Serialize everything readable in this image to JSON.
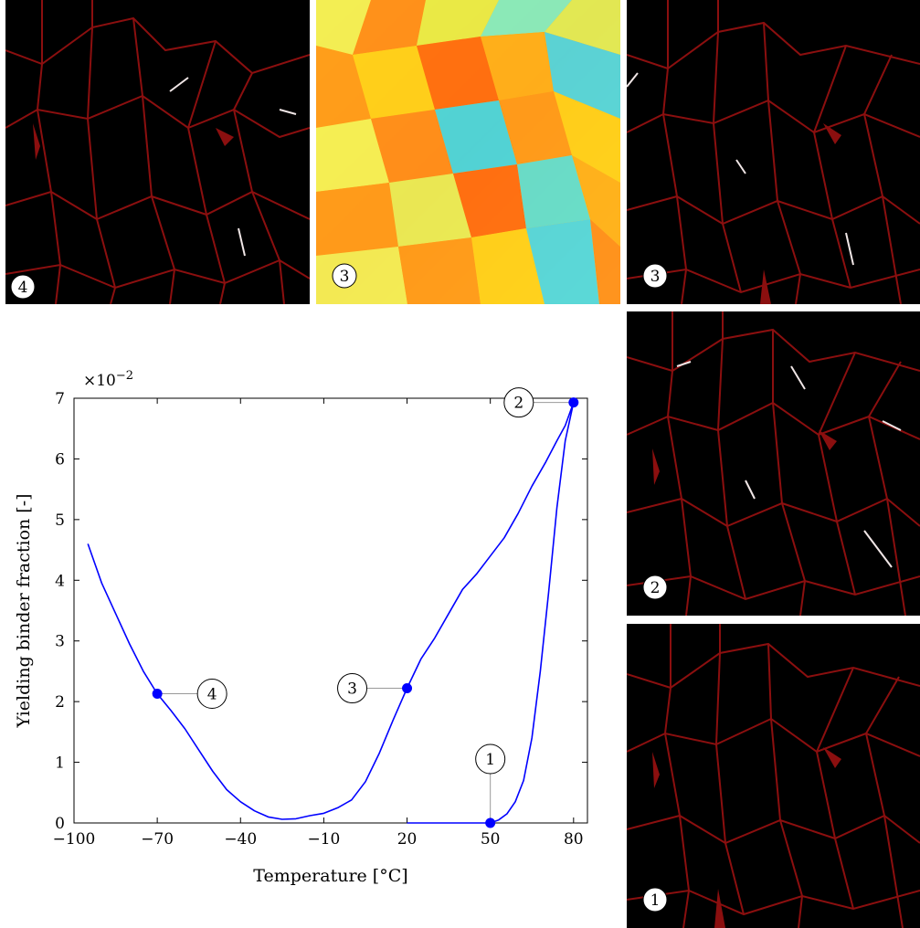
{
  "chart_data": {
    "type": "line",
    "title": "",
    "xlabel": "Temperature [°C]",
    "ylabel": "Yielding binder fraction [-]",
    "y_exponent_label": "×10",
    "y_exponent_power": "−2",
    "xlim": [
      -100,
      85
    ],
    "ylim": [
      0,
      7
    ],
    "xticks": [
      -100,
      -70,
      -40,
      -10,
      20,
      50,
      80
    ],
    "xtick_labels": [
      "−100",
      "−70",
      "−40",
      "−10",
      "20",
      "50",
      "80"
    ],
    "yticks": [
      0,
      1,
      2,
      3,
      4,
      5,
      6,
      7
    ],
    "ytick_labels": [
      "0",
      "1",
      "2",
      "3",
      "4",
      "5",
      "6",
      "7"
    ],
    "grid": false,
    "line_color": "#0000ff",
    "series": [
      {
        "segment": "heating",
        "x": [
          20,
          30,
          40,
          50,
          53,
          56,
          59,
          62,
          65,
          68,
          71,
          74,
          77,
          80
        ],
        "y": [
          0,
          0,
          0,
          0,
          0.05,
          0.15,
          0.35,
          0.7,
          1.4,
          2.5,
          3.8,
          5.2,
          6.3,
          6.93
        ]
      },
      {
        "segment": "cooling",
        "x": [
          80,
          77,
          74,
          70,
          65,
          60,
          55,
          50,
          45,
          40,
          35,
          30,
          25,
          20,
          15,
          10,
          5,
          0,
          -5,
          -10,
          -15,
          -20,
          -25,
          -30,
          -35,
          -40,
          -45,
          -50,
          -55,
          -60,
          -65,
          -70,
          -75,
          -80,
          -85,
          -90,
          -95
        ],
        "y": [
          6.93,
          6.55,
          6.3,
          5.95,
          5.55,
          5.1,
          4.7,
          4.4,
          4.1,
          3.85,
          3.45,
          3.05,
          2.7,
          2.22,
          1.7,
          1.15,
          0.68,
          0.38,
          0.25,
          0.16,
          0.12,
          0.07,
          0.06,
          0.1,
          0.2,
          0.35,
          0.55,
          0.85,
          1.2,
          1.55,
          1.85,
          2.13,
          2.5,
          2.95,
          3.45,
          3.95,
          4.6
        ]
      }
    ],
    "markers": [
      {
        "label": "1",
        "x": 50,
        "y": 0,
        "callout": "above"
      },
      {
        "label": "2",
        "x": 80,
        "y": 6.93,
        "callout": "left"
      },
      {
        "label": "3",
        "x": 20,
        "y": 2.22,
        "callout": "left"
      },
      {
        "label": "4",
        "x": -70,
        "y": 2.13,
        "callout": "right"
      }
    ]
  },
  "images": [
    {
      "id": "img-4-binder",
      "label": "4",
      "kind": "binder-map"
    },
    {
      "id": "img-3-field",
      "label": "3",
      "kind": "field-map"
    },
    {
      "id": "img-3-binder",
      "label": "3",
      "kind": "binder-map"
    },
    {
      "id": "img-2-binder",
      "label": "2",
      "kind": "binder-map"
    },
    {
      "id": "img-1-binder",
      "label": "1",
      "kind": "binder-map"
    }
  ],
  "colors": {
    "binder_line": "#8b0f0f",
    "binder_background": "#000000",
    "yield_highlight": "#f0e6e6",
    "marker_fill": "#0000ff"
  }
}
